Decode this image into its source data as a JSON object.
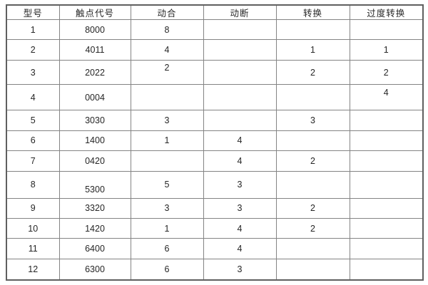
{
  "table": {
    "columns": [
      {
        "key": "model",
        "label": "型号"
      },
      {
        "key": "contact-code",
        "label": "触点代号"
      },
      {
        "key": "normally-open",
        "label": "动合"
      },
      {
        "key": "normally-closed",
        "label": "动断"
      },
      {
        "key": "changeover",
        "label": "转换"
      },
      {
        "key": "transition-changeover",
        "label": "过度转换"
      }
    ],
    "rows": [
      [
        "1",
        "8000",
        "8",
        "",
        "",
        ""
      ],
      [
        "2",
        "4011",
        "4",
        "",
        "1",
        "1"
      ],
      [
        "3",
        "2022",
        "2",
        "",
        "2",
        "2"
      ],
      [
        "4",
        "0004",
        "",
        "",
        "",
        "4"
      ],
      [
        "5",
        "3030",
        "3",
        "",
        "3",
        ""
      ],
      [
        "6",
        "1400",
        "1",
        "4",
        "",
        ""
      ],
      [
        "7",
        "0420",
        "",
        "4",
        "2",
        ""
      ],
      [
        "8",
        "5300",
        "5",
        "3",
        "",
        ""
      ],
      [
        "9",
        "3320",
        "3",
        "3",
        "2",
        ""
      ],
      [
        "10",
        "1420",
        "1",
        "4",
        "2",
        ""
      ],
      [
        "11",
        "6400",
        "6",
        "4",
        "",
        ""
      ],
      [
        "12",
        "6300",
        "6",
        "3",
        "",
        ""
      ]
    ],
    "colors": {
      "text": "#262626",
      "grid_border": "#848484",
      "outer_border": "#5f5f5f",
      "background": "#ffffff"
    }
  }
}
